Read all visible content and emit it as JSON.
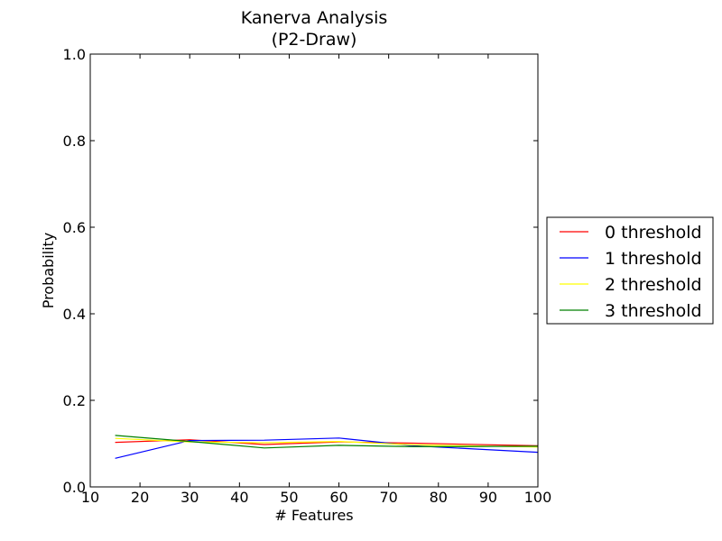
{
  "chart_data": {
    "type": "line",
    "title": "Kanerva Analysis",
    "subtitle": "(P2-Draw)",
    "xlabel": "# Features",
    "ylabel": "Probability",
    "xlim": [
      10,
      100
    ],
    "ylim": [
      0.0,
      1.0
    ],
    "x_ticks": [
      "10",
      "20",
      "30",
      "40",
      "50",
      "60",
      "70",
      "80",
      "90",
      "100"
    ],
    "y_ticks": [
      "0.0",
      "0.2",
      "0.4",
      "0.6",
      "0.8",
      "1.0"
    ],
    "grid": false,
    "legend_position": "right",
    "x": [
      15,
      30,
      45,
      60,
      75,
      100
    ],
    "series": [
      {
        "name": "0 threshold",
        "color": "#ff0000",
        "values": [
          0.103,
          0.109,
          0.098,
          0.104,
          0.101,
          0.095
        ]
      },
      {
        "name": "1 threshold",
        "color": "#0000ff",
        "values": [
          0.066,
          0.107,
          0.108,
          0.113,
          0.095,
          0.08
        ]
      },
      {
        "name": "2 threshold",
        "color": "#ffff00",
        "values": [
          0.112,
          0.104,
          0.102,
          0.105,
          0.097,
          0.092
        ]
      },
      {
        "name": "3 threshold",
        "color": "#008000",
        "values": [
          0.119,
          0.105,
          0.09,
          0.096,
          0.093,
          0.094
        ]
      }
    ]
  }
}
